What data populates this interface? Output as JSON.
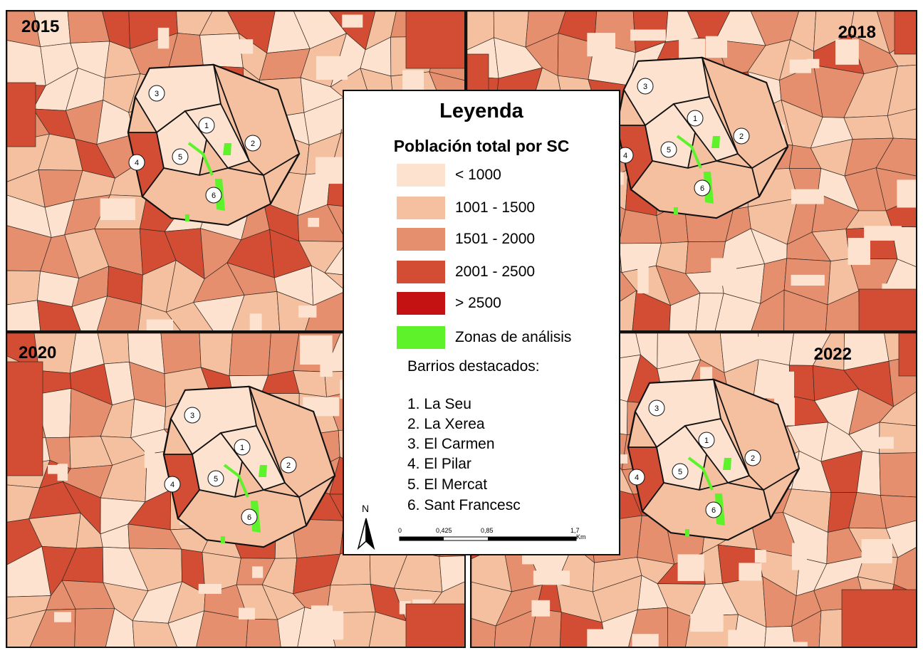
{
  "maps": [
    {
      "year": "2015",
      "year_pos": "top-left"
    },
    {
      "year": "2018",
      "year_pos": "top-right"
    },
    {
      "year": "2020",
      "year_pos": "top-left"
    },
    {
      "year": "2022",
      "year_pos": "top-right"
    }
  ],
  "neighborhood_markers": [
    "1",
    "2",
    "3",
    "4",
    "5",
    "6"
  ],
  "legend": {
    "title": "Leyenda",
    "subtitle": "Población total por SC",
    "classes": [
      {
        "label": "< 1000",
        "color": "#fde3cf"
      },
      {
        "label": "1001 - 1500",
        "color": "#f4c0a0"
      },
      {
        "label": "1501 - 2000",
        "color": "#e68f6e"
      },
      {
        "label": "2001 - 2500",
        "color": "#d24d33"
      },
      {
        "label": "> 2500",
        "color": "#c41212"
      },
      {
        "label": "Zonas de análisis",
        "color": "#5ef22a"
      }
    ],
    "barrios_title": "Barrios destacados:",
    "barrios": [
      "1. La Seu",
      "2. La Xerea",
      "3. El Carmen",
      "4. El Pilar",
      "5. El Mercat",
      "6. Sant Francesc"
    ]
  },
  "north_arrow": {
    "label": "N"
  },
  "scale_bar": {
    "ticks": [
      "0",
      "0,425",
      "0,85",
      "1,7"
    ],
    "unit": "Km"
  }
}
